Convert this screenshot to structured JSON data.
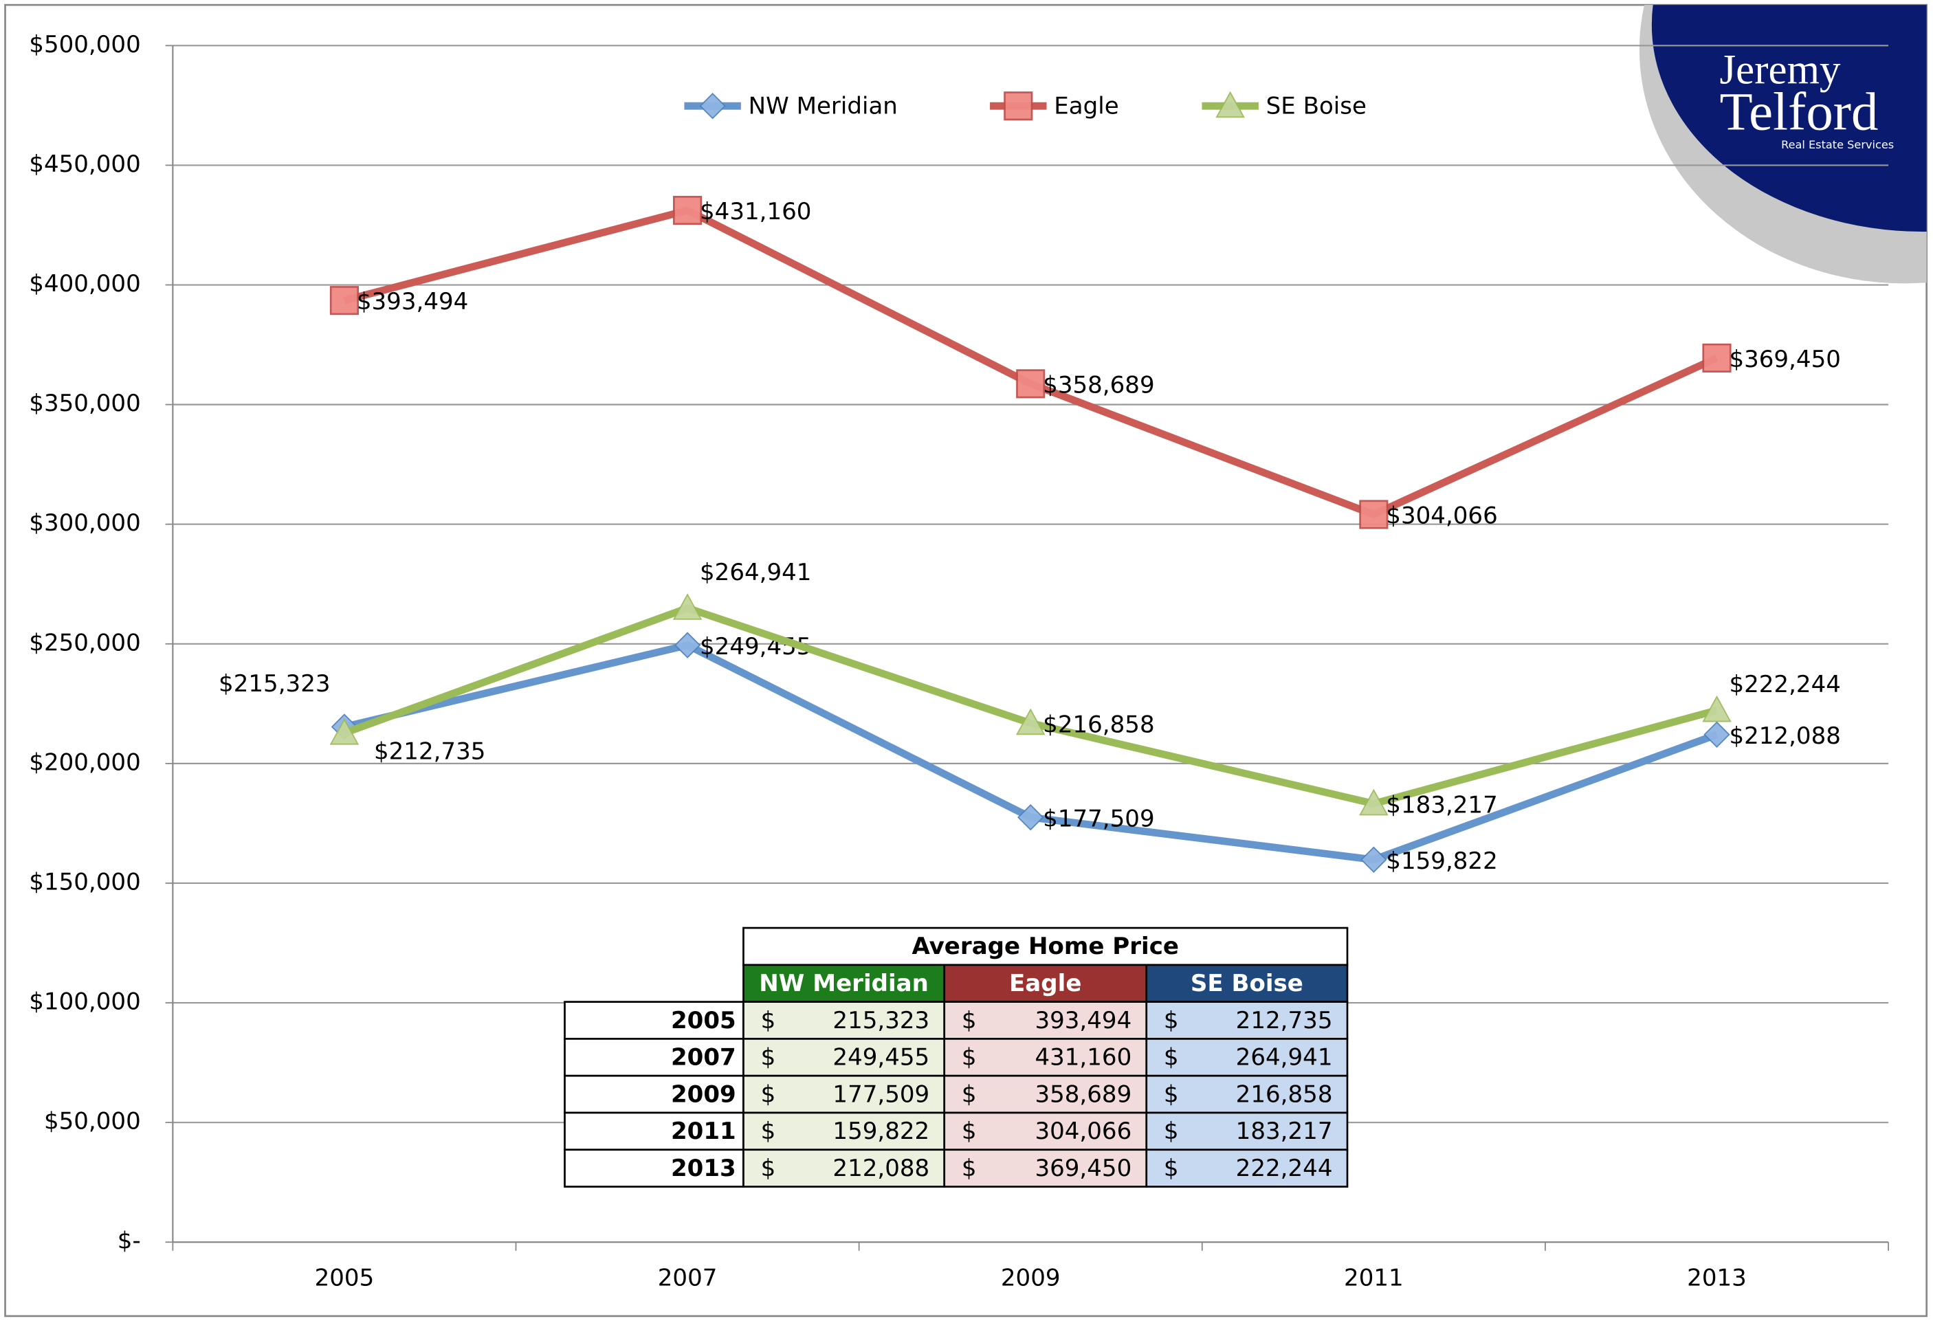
{
  "chart_data": {
    "type": "line",
    "categories": [
      "2005",
      "2007",
      "2009",
      "2011",
      "2013"
    ],
    "series": [
      {
        "name": "NW Meridian",
        "color": "#6495cd",
        "marker": "diamond",
        "values": [
          215323,
          249455,
          177509,
          159822,
          212088
        ],
        "value_labels": [
          "$215,323",
          "$249,455",
          "$177,509",
          "$159,822",
          "$212,088"
        ]
      },
      {
        "name": "Eagle",
        "color": "#cc5a55",
        "marker": "square",
        "values": [
          393494,
          431160,
          358689,
          304066,
          369450
        ],
        "value_labels": [
          "$393,494",
          "$431,160",
          "$358,689",
          "$304,066",
          "$369,450"
        ]
      },
      {
        "name": "SE Boise",
        "color": "#9bbb59",
        "marker": "triangle",
        "values": [
          212735,
          264941,
          216858,
          183217,
          222244
        ],
        "value_labels": [
          "$212,735",
          "$264,941",
          "$216,858",
          "$183,217",
          "$222,244"
        ]
      }
    ],
    "ylim": [
      0,
      500000
    ],
    "yticks": [
      {
        "value": 0,
        "label": "$-"
      },
      {
        "value": 50000,
        "label": "$50,000"
      },
      {
        "value": 100000,
        "label": "$100,000"
      },
      {
        "value": 150000,
        "label": "$150,000"
      },
      {
        "value": 200000,
        "label": "$200,000"
      },
      {
        "value": 250000,
        "label": "$250,000"
      },
      {
        "value": 300000,
        "label": "$300,000"
      },
      {
        "value": 350000,
        "label": "$350,000"
      },
      {
        "value": 400000,
        "label": "$400,000"
      },
      {
        "value": 450000,
        "label": "$450,000"
      },
      {
        "value": 500000,
        "label": "$500,000"
      }
    ],
    "grid": true,
    "legend": "top"
  },
  "table": {
    "title": "Average Home Price",
    "currency": "$",
    "cells": [
      [
        "215,323",
        "393,494",
        "212,735"
      ],
      [
        "249,455",
        "431,160",
        "264,941"
      ],
      [
        "177,509",
        "358,689",
        "216,858"
      ],
      [
        "159,822",
        "304,066",
        "183,217"
      ],
      [
        "212,088",
        "369,450",
        "222,244"
      ]
    ]
  },
  "logo": {
    "line1": "Jeremy",
    "line2": "Telford",
    "tagline": "Real Estate Services"
  }
}
